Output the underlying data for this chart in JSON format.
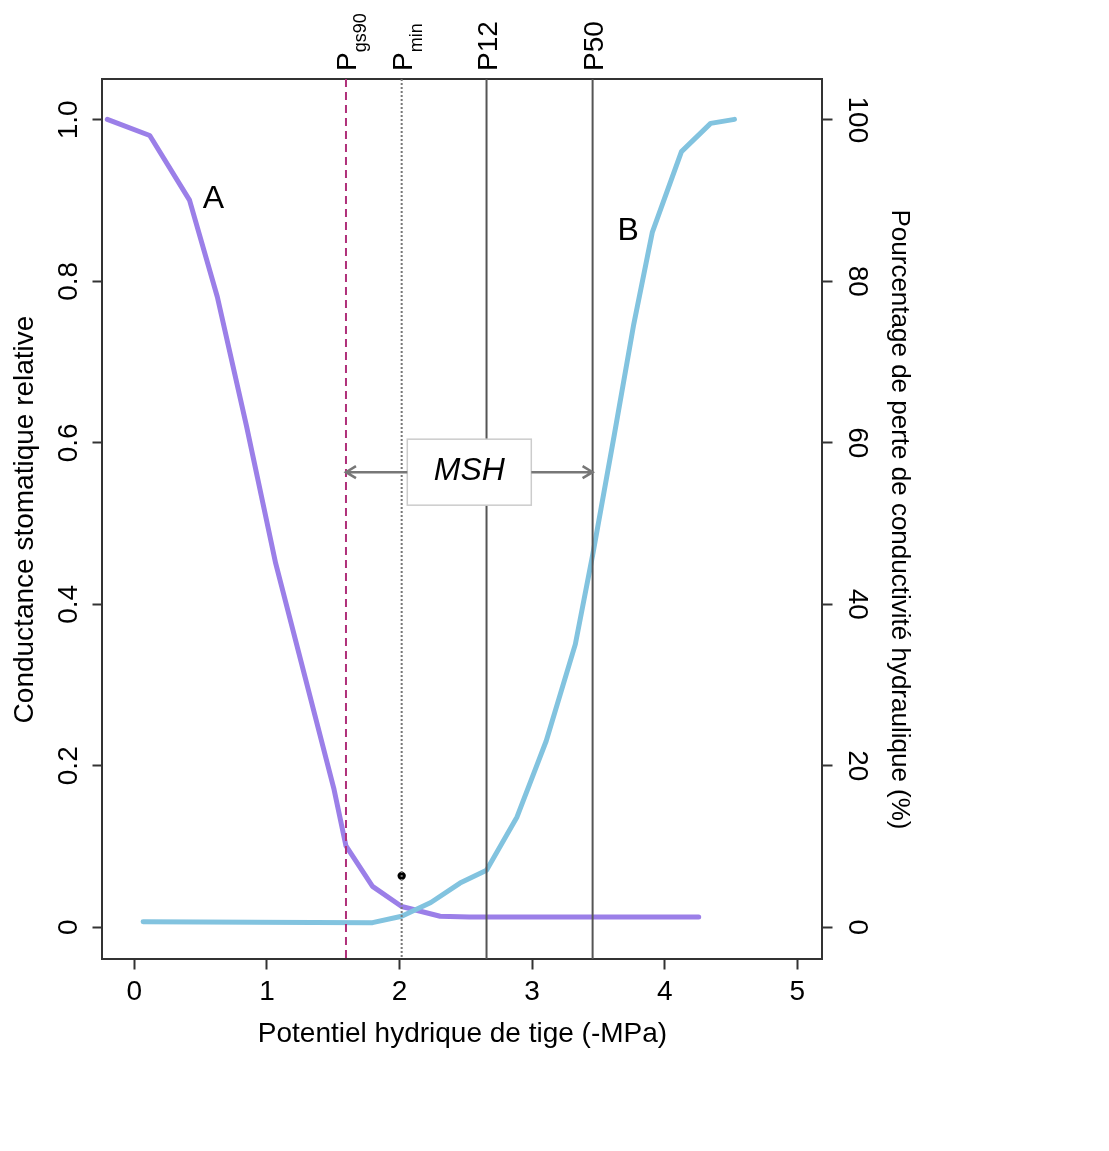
{
  "chart_data": {
    "type": "line",
    "xlabel": "Potentiel hydrique de tige (-MPa)",
    "ylabel": "Conductance stomatique relative",
    "y2label": "Pourcentage de perte de conductivité hydraulique (%)",
    "xlim": [
      -0.24,
      5.19
    ],
    "xticks": [
      0,
      1,
      2,
      3,
      4,
      5
    ],
    "ylim": [
      -0.04,
      1.05
    ],
    "yticks": [
      {
        "value": 0,
        "label": "0"
      },
      0.2,
      0.4,
      0.6,
      0.8,
      {
        "value": 1,
        "label": "1.0"
      }
    ],
    "y2lim": [
      -4,
      105
    ],
    "y2ticks": [
      0,
      20,
      40,
      60,
      80,
      100
    ],
    "grid": false,
    "series": [
      {
        "type": "line",
        "color": "#9b7fe8",
        "x": [
          -0.2,
          0.12,
          0.42,
          0.63,
          0.85,
          1.07,
          1.29,
          1.51,
          1.6,
          1.8,
          2.02,
          2.31,
          2.53,
          4.26
        ],
        "values": [
          1.0,
          0.98,
          0.9,
          0.78,
          0.62,
          0.45,
          0.31,
          0.17,
          0.1,
          0.05,
          0.025,
          0.013,
          0.012,
          0.012
        ]
      },
      {
        "type": "line",
        "axis": "y2",
        "color": "#82c3df",
        "x": [
          0.07,
          1.8,
          2.02,
          2.24,
          2.46,
          2.66,
          2.89,
          3.11,
          3.33,
          3.46,
          3.62,
          3.77,
          3.91,
          4.13,
          4.35,
          4.53
        ],
        "values": [
          0.6,
          0.5,
          1.3,
          3,
          5.4,
          7,
          13.6,
          23,
          35,
          46,
          60.6,
          74.6,
          86,
          96,
          99.5,
          100
        ]
      },
      {
        "type": "scatter",
        "marker": "circle",
        "color": "#000000",
        "x": [
          2.02
        ],
        "values": [
          0.063
        ]
      }
    ],
    "ref_lines": [
      {
        "axis": "x",
        "value": 1.6,
        "label": "P$_{gs90}$",
        "color": "#b0307a",
        "line_style": "dashed"
      },
      {
        "axis": "x",
        "value": 2.02,
        "label": "P$_{min}$",
        "color": "#777777",
        "line_style": "dotted"
      },
      {
        "axis": "x",
        "value": 2.66,
        "label": "P12",
        "color": "#555555",
        "line_style": "solid"
      },
      {
        "axis": "x",
        "value": 3.46,
        "label": "P50",
        "color": "#555555",
        "line_style": "solid"
      }
    ],
    "annotations": [
      "A",
      "B",
      {
        "text": "MSH",
        "x": 3.46,
        "y": 0.563
      }
    ]
  }
}
